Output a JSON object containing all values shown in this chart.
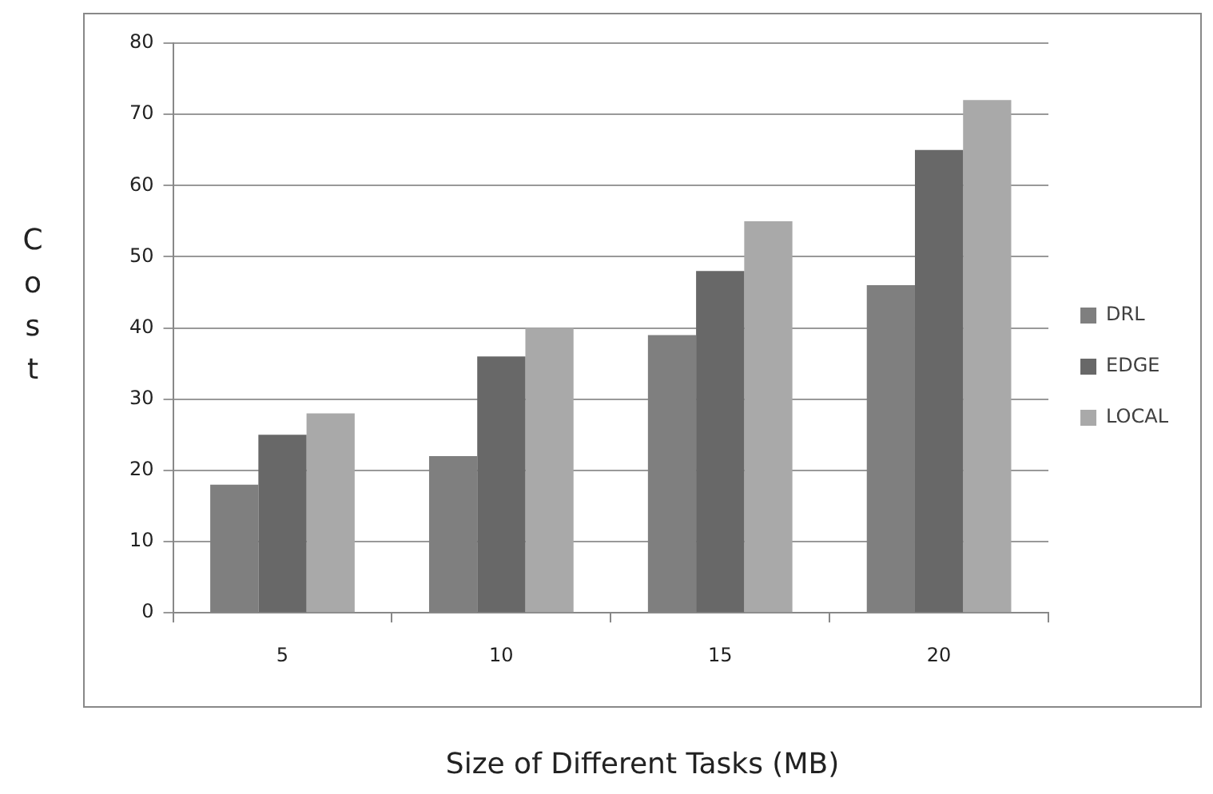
{
  "chart_data": {
    "type": "bar",
    "xlabel": "Size of Different Tasks (MB)",
    "ylabel": "Cost",
    "categories": [
      "5",
      "10",
      "15",
      "20"
    ],
    "series": [
      {
        "name": "DRL",
        "color": "#7f7f7f",
        "values": [
          18,
          22,
          39,
          46
        ]
      },
      {
        "name": "EDGE",
        "color": "#686868",
        "values": [
          25,
          36,
          48,
          65
        ]
      },
      {
        "name": "LOCAL",
        "color": "#a9a9a9",
        "values": [
          28,
          40,
          55,
          72
        ]
      }
    ],
    "ylim": [
      0,
      80
    ],
    "yticks": [
      0,
      10,
      20,
      30,
      40,
      50,
      60,
      70,
      80
    ],
    "grid": "y",
    "legend": "right"
  }
}
